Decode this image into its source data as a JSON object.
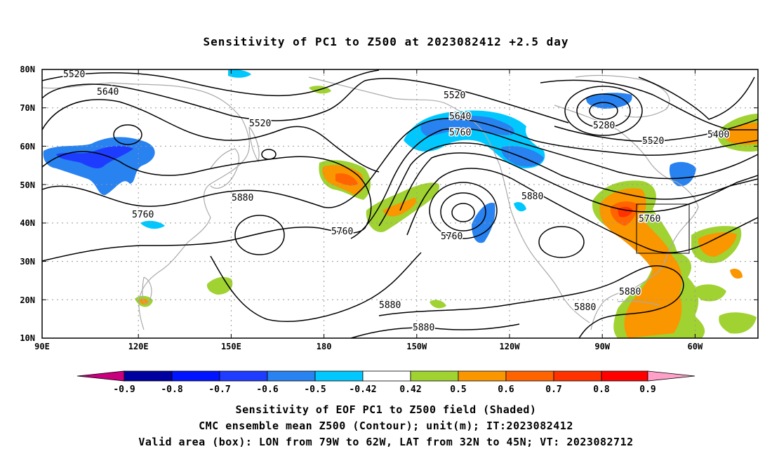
{
  "title": "Sensitivity of PC1 to Z500 at 2023082412 +2.5 day",
  "axes": {
    "lat_labels": [
      "80N",
      "70N",
      "60N",
      "50N",
      "40N",
      "30N",
      "20N",
      "10N"
    ],
    "lon_labels": [
      "90E",
      "120E",
      "150E",
      "180",
      "150W",
      "120W",
      "90W",
      "60W"
    ],
    "lon_range": [
      "90E",
      "53W"
    ],
    "lat_range": [
      "10N",
      "80N"
    ],
    "grid": true
  },
  "contour_labels": [
    "5520",
    "5640",
    "5520",
    "5520",
    "5640",
    "5760",
    "5280",
    "5400",
    "5520",
    "5880",
    "5760",
    "5760",
    "5880",
    "5760",
    "5880",
    "5880",
    "5880",
    "5880"
  ],
  "colorbar": {
    "ticks": [
      "-0.9",
      "-0.8",
      "-0.7",
      "-0.6",
      "-0.5",
      "-0.42",
      "0.42",
      "0.5",
      "0.6",
      "0.7",
      "0.8",
      "0.9"
    ],
    "colors": [
      "#c8007d",
      "#0000a0",
      "#0014ff",
      "#1e3cff",
      "#2882f0",
      "#00c8ff",
      "#ffffff",
      "#a0d232",
      "#fa9600",
      "#ff6400",
      "#ff3200",
      "#ff0000",
      "#ffa0c8"
    ]
  },
  "box": {
    "lon_from": "79W",
    "lon_to": "62W",
    "lat_from": "32N",
    "lat_to": "45N"
  },
  "footer": {
    "line1": "Sensitivity of EOF PC1 to Z500 field (Shaded)",
    "line2": "CMC ensemble mean Z500 (Contour); unit(m); IT:2023082412",
    "line3": "Valid area (box): LON from 79W to 62W, LAT from 32N to 45N; VT: 2023082712"
  }
}
